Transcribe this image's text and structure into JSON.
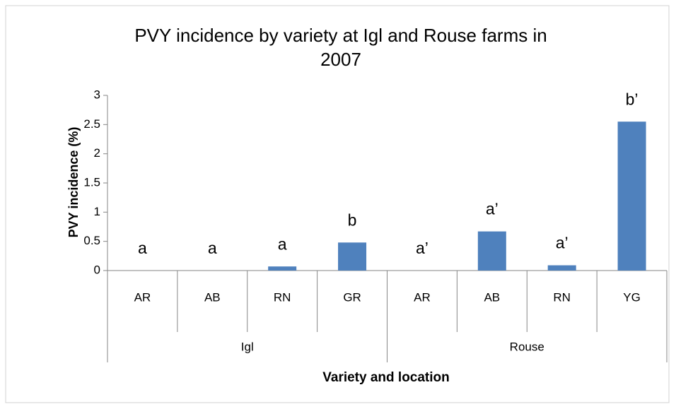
{
  "chart_data": {
    "type": "bar",
    "title": "PVY incidence by variety at Igl and Rouse farms in 2007",
    "title_lines": [
      "PVY incidence by variety at Igl and Rouse farms in",
      "2007"
    ],
    "x_label": "Variety and location",
    "y_label": "PVY incidence (%)",
    "groups": [
      {
        "name": "Igl",
        "categories": [
          "AR",
          "AB",
          "RN",
          "GR"
        ]
      },
      {
        "name": "Rouse",
        "categories": [
          "AR",
          "AB",
          "RN",
          "YG"
        ]
      }
    ],
    "values": [
      0,
      0,
      0.07,
      0.48,
      0,
      0.67,
      0.09,
      2.55
    ],
    "annotations": [
      "a",
      "a",
      "a",
      "b",
      "a’",
      "a’",
      "a’",
      "b’"
    ],
    "color": "#4f81bd",
    "ylim": [
      0,
      3
    ],
    "yticks": [
      0,
      0.5,
      1,
      1.5,
      2,
      2.5,
      3
    ],
    "grid": false
  }
}
